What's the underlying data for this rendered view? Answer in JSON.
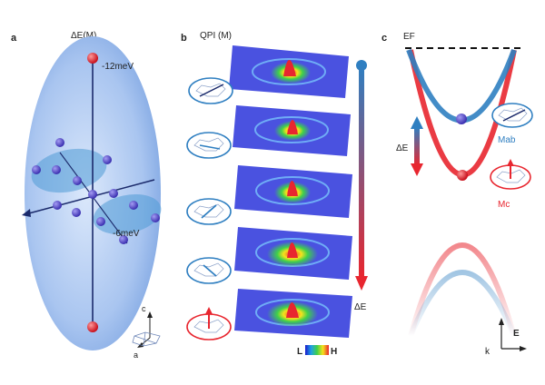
{
  "panel_a": {
    "label": "a",
    "title": "ΔE(M)",
    "top_energy": "-12meV",
    "bottom_energy": "-6meV",
    "axis_c": "c",
    "axis_a": "a"
  },
  "panel_b": {
    "label": "b",
    "title": "QPI (M)",
    "arrow_label": "ΔE",
    "colorbar_low": "L",
    "colorbar_high": "H",
    "layer_count": 5
  },
  "panel_c": {
    "label": "c",
    "fermi_label": "EF",
    "delta_label": "ΔE",
    "m_ab_label": "Mab",
    "m_c_label": "Mc",
    "axis_e": "E",
    "axis_k": "k"
  },
  "colors": {
    "blue": "#2f7fc1",
    "red": "#e8262f",
    "ellipsoid": "#a8c6f2",
    "sphere": "#4a3fc4"
  }
}
